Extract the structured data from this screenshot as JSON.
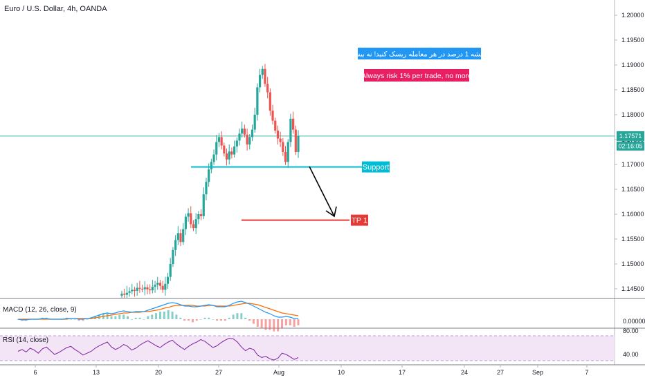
{
  "symbol_title": "Euro / U.S. Dollar, 4h, OANDA",
  "price_axis": {
    "ticks": [
      "1.20000",
      "1.19500",
      "1.19000",
      "1.18500",
      "1.18000",
      "1.17500",
      "1.17000",
      "1.16500",
      "1.16000",
      "1.15500",
      "1.15000",
      "1.14500"
    ],
    "current_price": "1.17571",
    "countdown": "02:16:05"
  },
  "date_axis": {
    "ticks": [
      "6",
      "13",
      "20",
      "27",
      "Aug",
      "10",
      "17",
      "24",
      "27",
      "Sep",
      "7"
    ]
  },
  "annotations": {
    "note_fa": "همیشه 1 درصد در هر معامله ریسک کنید! نه بیشتر",
    "note_en": "Always risk 1% per trade, no more",
    "support_label": "Support",
    "tp_label": "TP 1"
  },
  "macd": {
    "label": "MACD (12, 26, close, 9)",
    "tick": "0.00000"
  },
  "rsi": {
    "label": "RSI (14, close)",
    "ticks": [
      "80.00",
      "40.00"
    ]
  },
  "colors": {
    "up": "#26a69a",
    "down": "#ef5350",
    "support_line": "#00bcd4",
    "tp_line": "#e53935",
    "note_fa_bg": "#2196f3",
    "note_en_bg": "#e91e63",
    "macd_line": "#2196f3",
    "signal_line": "#ff6d00",
    "rsi_line": "#7b1fa2",
    "rsi_band": "#f3e5f5"
  },
  "chart_data": {
    "type": "candlestick",
    "symbol": "EURUSD",
    "timeframe": "4h",
    "ylim": [
      1.1425,
      1.2025
    ],
    "current_price": 1.17571,
    "support_level": 1.1695,
    "tp1_level": 1.1588,
    "closes": [
      1.144,
      1.1438,
      1.1442,
      1.1445,
      1.1448,
      1.1446,
      1.1452,
      1.145,
      1.1449,
      1.1453,
      1.1449,
      1.1447,
      1.1454,
      1.1458,
      1.1462,
      1.1456,
      1.1448,
      1.146,
      1.1474,
      1.15,
      1.1528,
      1.1548,
      1.1562,
      1.1544,
      1.157,
      1.1595,
      1.1602,
      1.158,
      1.1572,
      1.159,
      1.16,
      1.1596,
      1.164,
      1.1665,
      1.169,
      1.1705,
      1.172,
      1.1745,
      1.1755,
      1.1738,
      1.1722,
      1.171,
      1.1726,
      1.172,
      1.1736,
      1.1748,
      1.1762,
      1.1772,
      1.176,
      1.174,
      1.1755,
      1.177,
      1.18,
      1.1855,
      1.188,
      1.1892,
      1.1862,
      1.1845,
      1.1808,
      1.1788,
      1.1768,
      1.1752,
      1.1745,
      1.1725,
      1.1705,
      1.1745,
      1.1792,
      1.177,
      1.1725,
      1.1757
    ],
    "rsi": [
      55,
      58,
      54,
      60,
      57,
      52,
      59,
      62,
      56,
      50,
      53,
      57,
      61,
      63,
      58,
      54,
      49,
      52,
      55,
      60,
      64,
      67,
      70,
      62,
      58,
      61,
      66,
      63,
      57,
      60,
      65,
      69,
      72,
      68,
      64,
      61,
      66,
      70,
      73,
      67,
      62,
      58,
      63,
      67,
      70,
      74,
      71,
      66,
      61,
      64,
      69,
      73,
      76,
      75,
      70,
      62,
      56,
      60,
      58,
      49,
      45,
      47,
      43,
      41,
      44,
      52,
      50,
      46,
      42,
      45
    ],
    "macd": [
      0,
      -0.0001,
      -0.0001,
      0,
      0,
      0,
      0.0001,
      0.0001,
      0,
      0,
      0,
      0,
      0.0001,
      0.0001,
      0.0001,
      0,
      0,
      0.0001,
      0.0002,
      0.0004,
      0.0006,
      0.0008,
      0.0009,
      0.0008,
      0.0009,
      0.0011,
      0.0012,
      0.0011,
      0.001,
      0.0011,
      0.0011,
      0.0011,
      0.0013,
      0.0015,
      0.0017,
      0.0019,
      0.0021,
      0.0023,
      0.0024,
      0.0023,
      0.0021,
      0.0019,
      0.0019,
      0.0018,
      0.0018,
      0.0019,
      0.002,
      0.0021,
      0.002,
      0.0018,
      0.0018,
      0.0018,
      0.002,
      0.0023,
      0.0025,
      0.0026,
      0.0024,
      0.0022,
      0.0019,
      0.0016,
      0.0013,
      0.001,
      0.0008,
      0.0005,
      0.0003,
      0.0003,
      0.0004,
      0.0003,
      0.0001,
      0.0001
    ],
    "signal": [
      0,
      0,
      0,
      0,
      0,
      0,
      0,
      0,
      0,
      0,
      0,
      0,
      0,
      0.0001,
      0.0001,
      0.0001,
      0.0001,
      0.0001,
      0.0001,
      0.0002,
      0.0003,
      0.0004,
      0.0005,
      0.0006,
      0.0007,
      0.0008,
      0.0009,
      0.0009,
      0.001,
      0.001,
      0.001,
      0.0011,
      0.0011,
      0.0012,
      0.0013,
      0.0014,
      0.0016,
      0.0017,
      0.0019,
      0.002,
      0.002,
      0.002,
      0.002,
      0.002,
      0.0019,
      0.0019,
      0.0019,
      0.002,
      0.002,
      0.0019,
      0.0019,
      0.0019,
      0.0019,
      0.002,
      0.0021,
      0.0022,
      0.0023,
      0.0023,
      0.0022,
      0.0021,
      0.0019,
      0.0017,
      0.0015,
      0.0013,
      0.0011,
      0.0009,
      0.0008,
      0.0007,
      0.0006,
      0.0005
    ]
  }
}
